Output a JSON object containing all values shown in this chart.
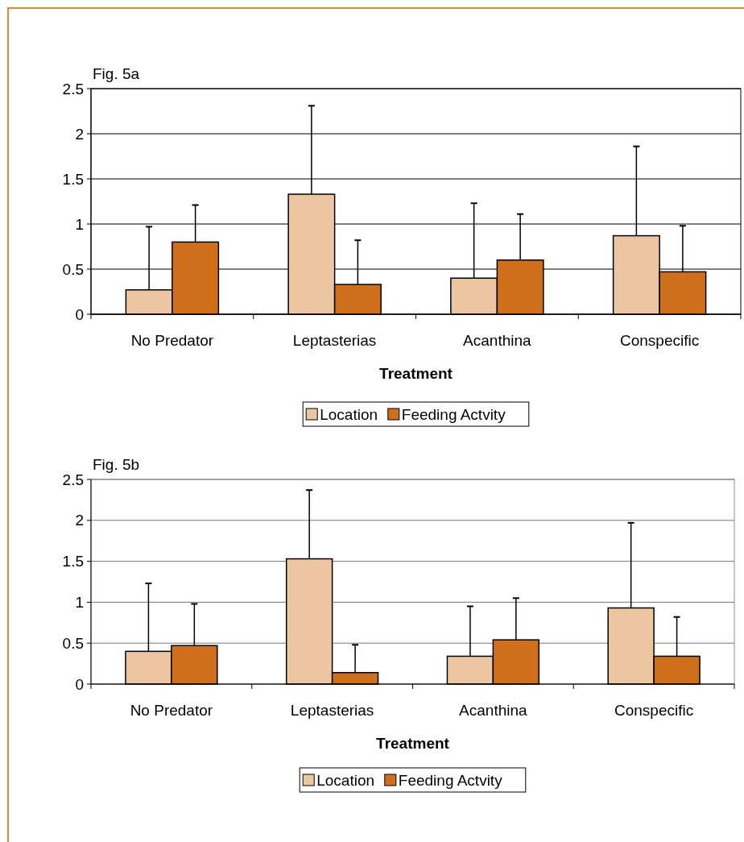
{
  "chart_data": [
    {
      "type": "bar",
      "title": "Fig. 5a",
      "xlabel": "Treatment",
      "categories": [
        "No Predator",
        "Leptasterias",
        "Acanthina",
        "Conspecific"
      ],
      "ylim": [
        0,
        2.5
      ],
      "yticks": [
        0,
        0.5,
        1,
        1.5,
        2,
        2.5
      ],
      "grid": "y",
      "legend": "bottom",
      "series": [
        {
          "name": "Location",
          "color": "#ebc6a0",
          "values": [
            0.27,
            1.33,
            0.4,
            0.87
          ],
          "errors": [
            [
              0.27,
              0.97
            ],
            [
              1.33,
              2.31
            ],
            [
              0.4,
              1.23
            ],
            [
              0.87,
              1.86
            ]
          ]
        },
        {
          "name": "Feeding Actvity",
          "color": "#cf6f1c",
          "values": [
            0.8,
            0.33,
            0.6,
            0.47
          ],
          "errors": [
            [
              0.8,
              1.21
            ],
            [
              0.33,
              0.82
            ],
            [
              0.6,
              1.11
            ],
            [
              0.47,
              0.98
            ]
          ]
        }
      ]
    },
    {
      "type": "bar",
      "title": "Fig. 5b",
      "xlabel": "Treatment",
      "categories": [
        "No Predator",
        "Leptasterias",
        "Acanthina",
        "Conspecific"
      ],
      "ylim": [
        0,
        2.5
      ],
      "yticks": [
        0,
        0.5,
        1,
        1.5,
        2,
        2.5
      ],
      "grid": "y",
      "legend": "bottom",
      "series": [
        {
          "name": "Location",
          "color": "#ebc6a0",
          "values": [
            0.4,
            1.53,
            0.34,
            0.93
          ],
          "errors": [
            [
              0.4,
              1.23
            ],
            [
              1.53,
              2.37
            ],
            [
              0.34,
              0.95
            ],
            [
              0.93,
              1.97
            ]
          ]
        },
        {
          "name": "Feeding Actvity",
          "color": "#cf6f1c",
          "values": [
            0.47,
            0.14,
            0.54,
            0.34
          ],
          "errors": [
            [
              0.47,
              0.98
            ],
            [
              0.14,
              0.48
            ],
            [
              0.54,
              1.05
            ],
            [
              0.34,
              0.82
            ]
          ]
        }
      ]
    }
  ]
}
